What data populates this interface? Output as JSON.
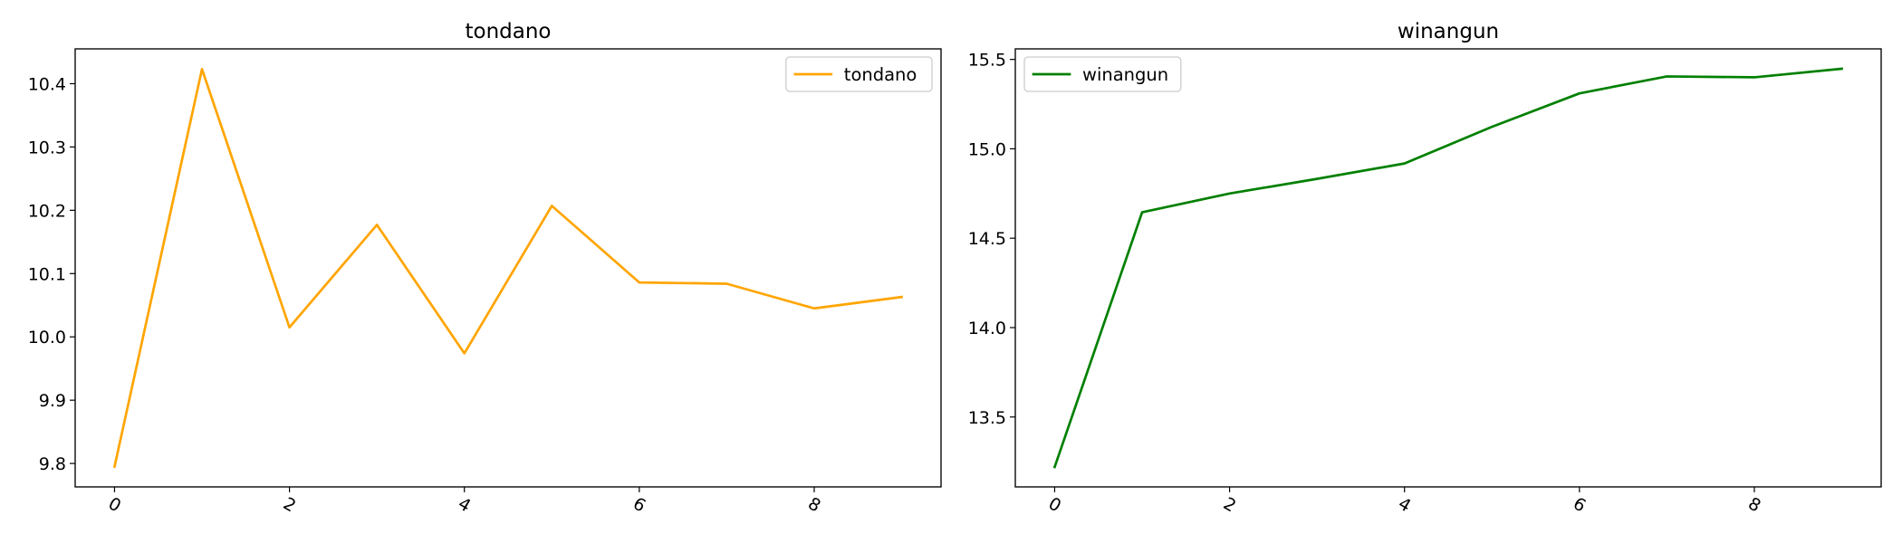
{
  "chart_data": [
    {
      "type": "line",
      "title": "tondano",
      "x": [
        0,
        1,
        2,
        3,
        4,
        5,
        6,
        7,
        8,
        9
      ],
      "series": [
        {
          "name": "tondano",
          "color": "#ffa500",
          "values": [
            9.795,
            10.423,
            10.015,
            10.177,
            9.974,
            10.207,
            10.086,
            10.084,
            10.045,
            10.063
          ]
        }
      ],
      "xticks": [
        "0",
        "2",
        "4",
        "6",
        "8"
      ],
      "yticks": [
        "9.8",
        "9.9",
        "10.0",
        "10.1",
        "10.2",
        "10.3",
        "10.4"
      ],
      "xlim": [
        -0.45,
        9.45
      ],
      "ylim": [
        9.763,
        10.455
      ],
      "grid": false,
      "legend": "upper right"
    },
    {
      "type": "line",
      "title": "winangun",
      "x": [
        0,
        1,
        2,
        3,
        4,
        5,
        6,
        7,
        8,
        9
      ],
      "series": [
        {
          "name": "winangun",
          "color": "#008000",
          "values": [
            13.22,
            14.645,
            14.75,
            14.832,
            14.918,
            15.123,
            15.31,
            15.405,
            15.4,
            15.448
          ]
        }
      ],
      "xticks": [
        "0",
        "2",
        "4",
        "6",
        "8"
      ],
      "yticks": [
        "13.5",
        "14.0",
        "14.5",
        "15.0",
        "15.5"
      ],
      "xlim": [
        -0.45,
        9.45
      ],
      "ylim": [
        13.109,
        15.559
      ],
      "grid": false,
      "legend": "upper left"
    }
  ]
}
